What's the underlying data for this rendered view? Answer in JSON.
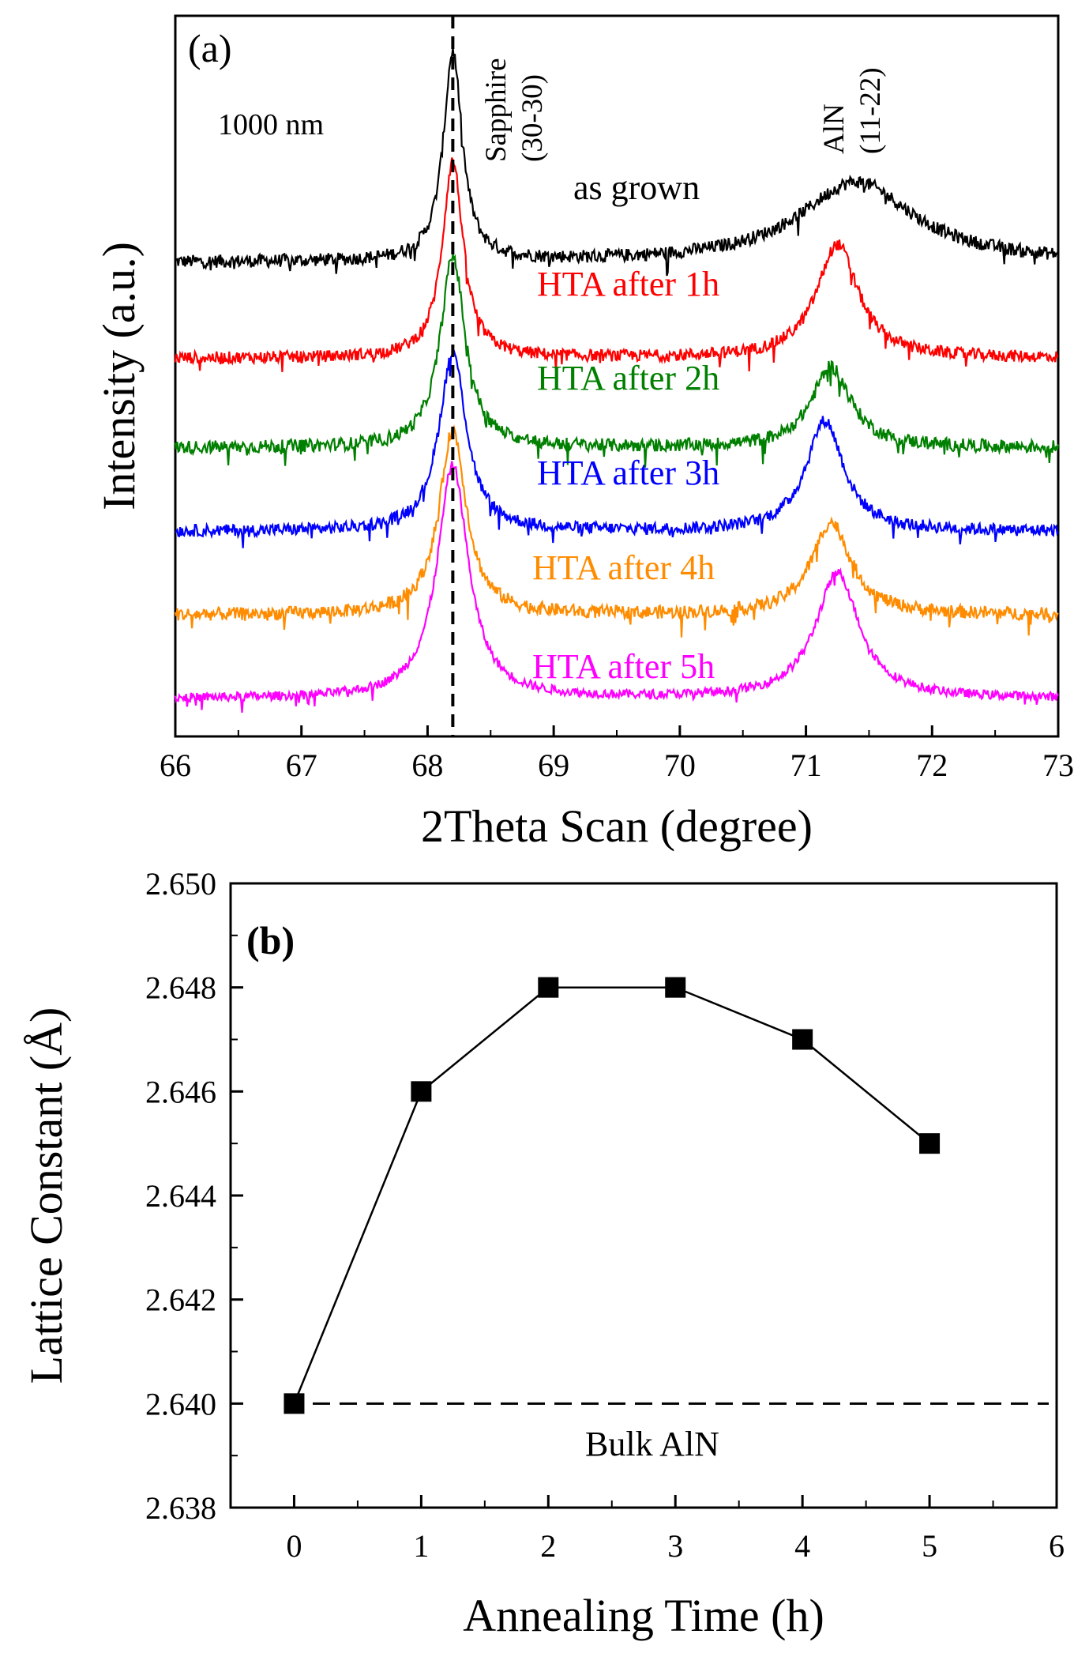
{
  "chart_data": [
    {
      "panel": "(a)",
      "type": "line",
      "subtitle": "1000 nm",
      "xlabel": "2Theta Scan (degree)",
      "ylabel": "Intensity (a.u.)",
      "xlim": [
        66,
        73
      ],
      "x_ticks": [
        66,
        67,
        68,
        69,
        70,
        71,
        72,
        73
      ],
      "y_ticks": [],
      "grid": false,
      "reference_line": {
        "x": 68.2,
        "style": "dashed"
      },
      "peak_annotations": [
        {
          "line1": "Sapphire",
          "line2": "(30-30)",
          "x": 68.2
        },
        {
          "line1": "AlN",
          "line2": "(11-22)",
          "x": 71.2
        }
      ],
      "series": [
        {
          "name": "as grown",
          "color": "#000000",
          "baseline": 7.8,
          "noise": 0.22,
          "peaks": [
            {
              "center": 68.2,
              "height": 3.5,
              "width": 0.09
            },
            {
              "center": 71.4,
              "height": 1.35,
              "width": 0.55
            }
          ]
        },
        {
          "name": "HTA after 1h",
          "color": "#ff0000",
          "baseline": 6.2,
          "noise": 0.2,
          "peaks": [
            {
              "center": 68.2,
              "height": 3.3,
              "width": 0.1
            },
            {
              "center": 71.25,
              "height": 1.9,
              "width": 0.2
            }
          ]
        },
        {
          "name": "HTA after 2h",
          "color": "#008000",
          "baseline": 4.7,
          "noise": 0.22,
          "peaks": [
            {
              "center": 68.2,
              "height": 3.2,
              "width": 0.12
            },
            {
              "center": 71.2,
              "height": 1.35,
              "width": 0.19
            }
          ]
        },
        {
          "name": "HTA after 3h",
          "color": "#0000ff",
          "baseline": 3.3,
          "noise": 0.2,
          "peaks": [
            {
              "center": 68.2,
              "height": 3.0,
              "width": 0.13
            },
            {
              "center": 71.15,
              "height": 1.85,
              "width": 0.18
            }
          ]
        },
        {
          "name": "HTA after 4h",
          "color": "#ff8c00",
          "baseline": 1.9,
          "noise": 0.22,
          "peaks": [
            {
              "center": 68.2,
              "height": 3.1,
              "width": 0.13
            },
            {
              "center": 71.2,
              "height": 1.55,
              "width": 0.19
            }
          ]
        },
        {
          "name": "HTA after 5h",
          "color": "#ff00ff",
          "baseline": 0.5,
          "noise": 0.15,
          "peaks": [
            {
              "center": 68.2,
              "height": 3.9,
              "width": 0.15
            },
            {
              "center": 71.25,
              "height": 2.1,
              "width": 0.21
            }
          ]
        }
      ]
    },
    {
      "panel": "(b)",
      "type": "line",
      "title": "",
      "xlabel": "Annealing Time (h)",
      "ylabel": "Lattice Constant (Å)",
      "xlim": [
        -0.5,
        6
      ],
      "ylim": [
        2.638,
        2.65
      ],
      "x_ticks": [
        0,
        1,
        2,
        3,
        4,
        5,
        6
      ],
      "y_ticks": [
        "2.638",
        "2.640",
        "2.642",
        "2.644",
        "2.646",
        "2.648",
        "2.650"
      ],
      "grid": false,
      "x": [
        0,
        1,
        2,
        3,
        4,
        5
      ],
      "y": [
        2.64,
        2.646,
        2.648,
        2.648,
        2.647,
        2.645
      ],
      "marker": "square",
      "reference_line": {
        "y": 2.64,
        "style": "dashed",
        "label": "Bulk AlN"
      }
    }
  ]
}
